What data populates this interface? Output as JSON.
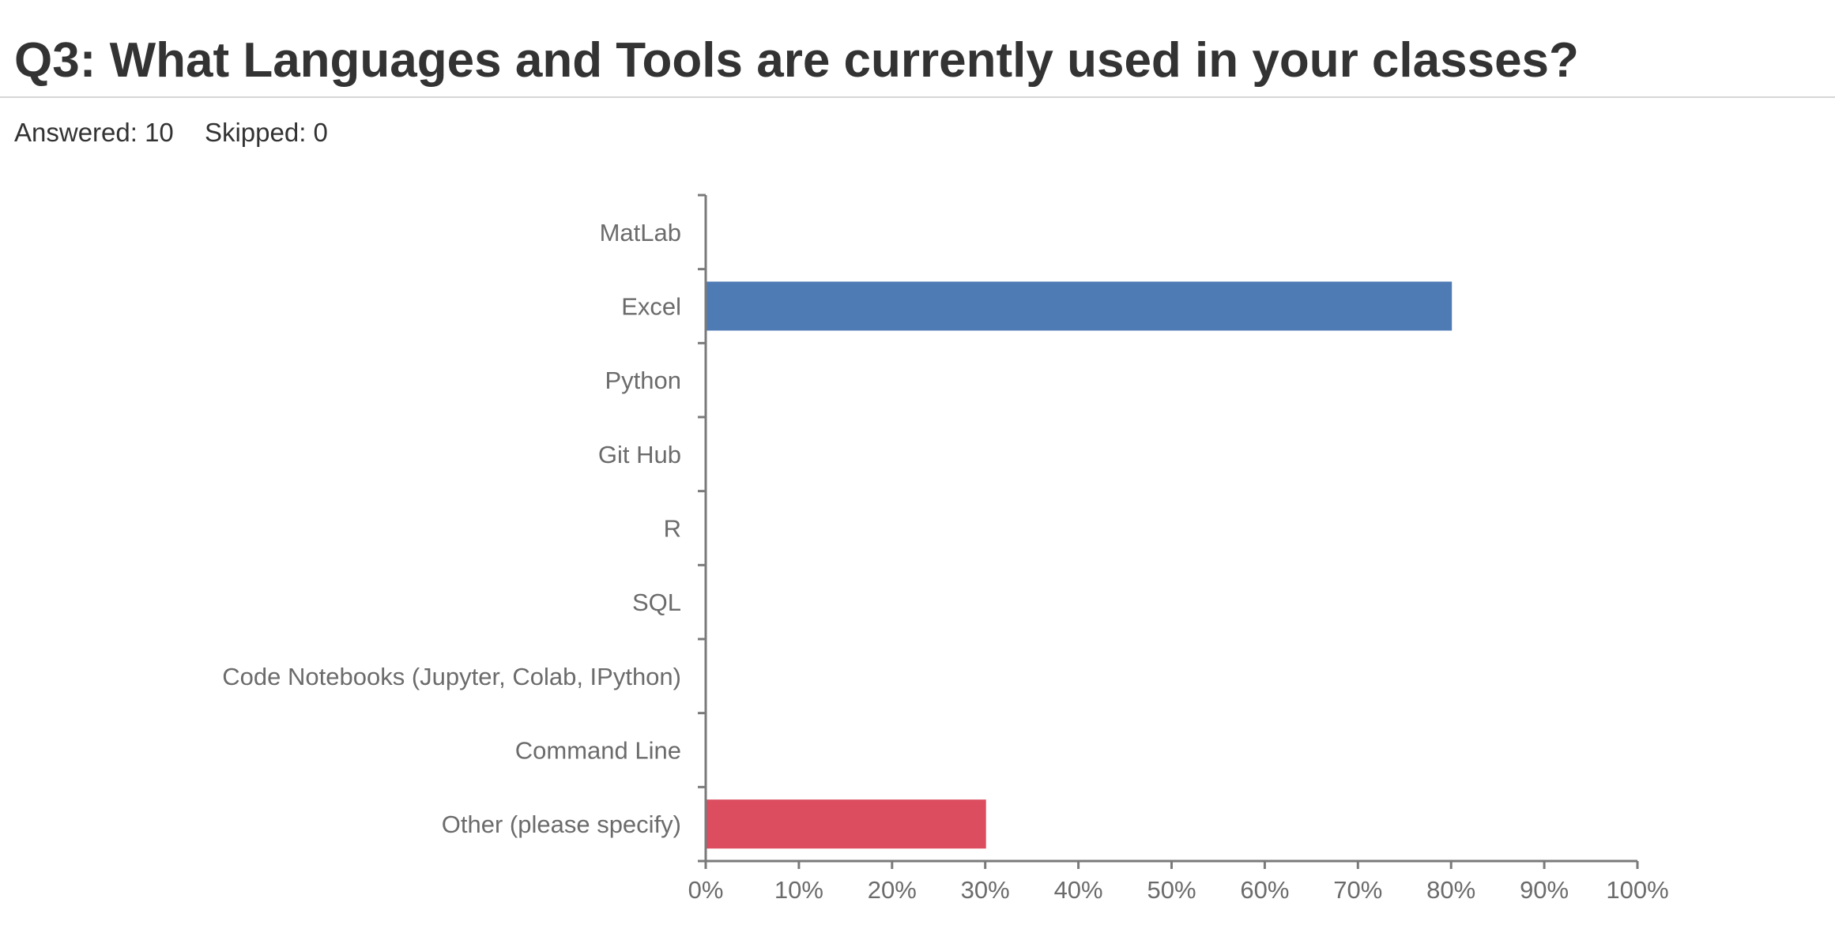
{
  "header": {
    "title": "Q3: What Languages and Tools are currently used in your classes?",
    "answered": "Answered: 10",
    "skipped": "Skipped: 0"
  },
  "colors": {
    "blue_bar": "#4f7bb5",
    "red_bar": "#db4d5f",
    "axis": "#7a7a7a",
    "label": "#6b6b6b"
  },
  "chart_data": {
    "type": "bar",
    "orientation": "horizontal",
    "title": "",
    "xlabel": "",
    "ylabel": "",
    "categories": [
      "MatLab",
      "Excel",
      "Python",
      "Git Hub",
      "R",
      "SQL",
      "Code Notebooks (Jupyter, Colab, IPython)",
      "Command Line",
      "Other (please specify)"
    ],
    "values": [
      0,
      80,
      0,
      0,
      0,
      0,
      0,
      0,
      30
    ],
    "bar_colors": [
      "#4f7bb5",
      "#4f7bb5",
      "#4f7bb5",
      "#4f7bb5",
      "#4f7bb5",
      "#4f7bb5",
      "#4f7bb5",
      "#4f7bb5",
      "#db4d5f"
    ],
    "xlim": [
      0,
      100
    ],
    "x_ticks": [
      0,
      10,
      20,
      30,
      40,
      50,
      60,
      70,
      80,
      90,
      100
    ],
    "x_tick_labels": [
      "0%",
      "10%",
      "20%",
      "30%",
      "40%",
      "50%",
      "60%",
      "70%",
      "80%",
      "90%",
      "100%"
    ],
    "grid": false,
    "legend": "none"
  }
}
